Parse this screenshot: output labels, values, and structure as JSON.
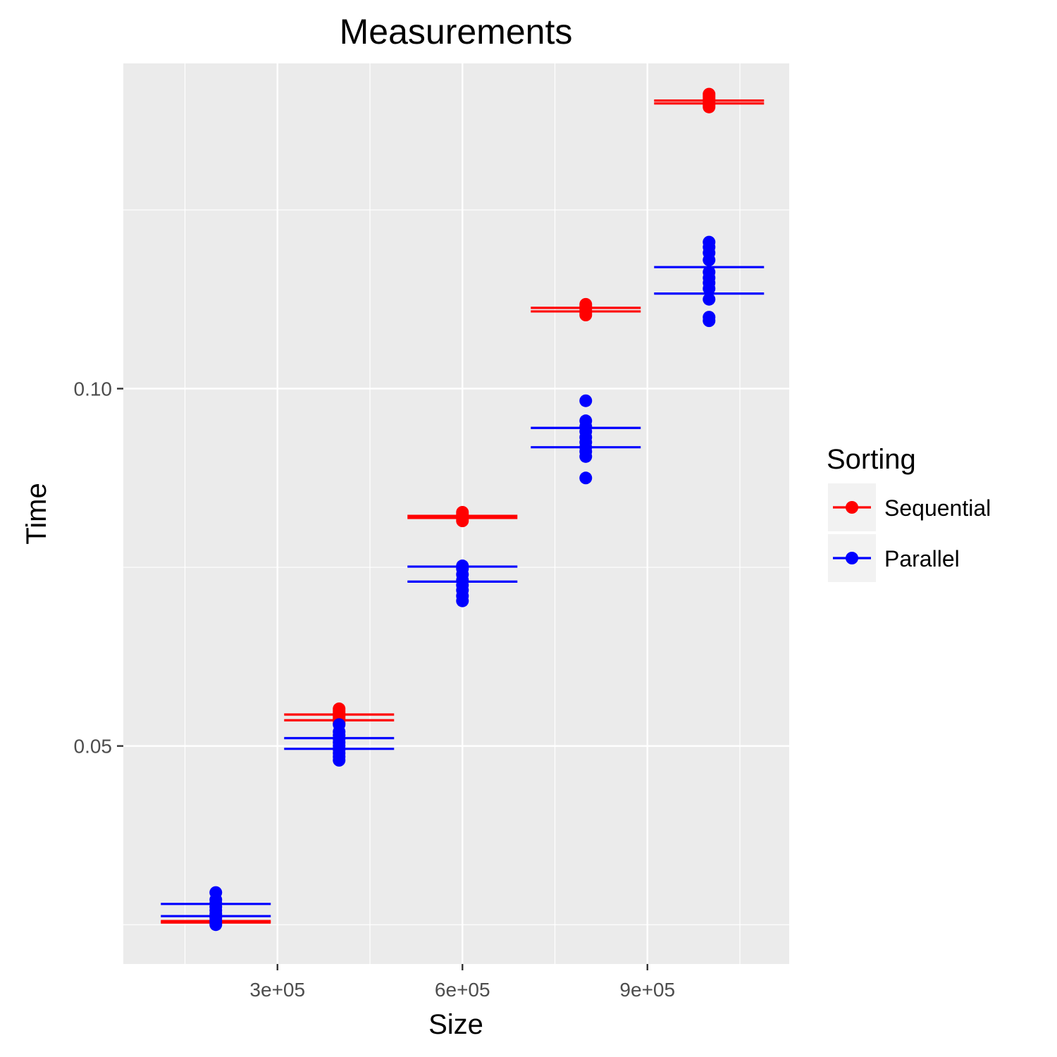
{
  "chart_data": {
    "type": "scatter",
    "title": "Measurements",
    "xlabel": "Size",
    "ylabel": "Time",
    "xlim": [
      50000,
      1130000
    ],
    "ylim": [
      0.0195,
      0.1455
    ],
    "x_ticks": [
      {
        "value": 300000,
        "label": "3e+05"
      },
      {
        "value": 600000,
        "label": "6e+05"
      },
      {
        "value": 900000,
        "label": "9e+05"
      }
    ],
    "y_ticks": [
      {
        "value": 0.05,
        "label": "0.05"
      },
      {
        "value": 0.1,
        "label": "0.10"
      }
    ],
    "grid": true,
    "legend": {
      "title": "Sorting",
      "position": "right"
    },
    "series": [
      {
        "name": "Sequential",
        "color": "#ff0000",
        "points": [
          {
            "x": 200000,
            "y": [
              0.0252,
              0.0253,
              0.0254,
              0.0254,
              0.0255,
              0.0256
            ]
          },
          {
            "x": 400000,
            "y": [
              0.0532,
              0.0535,
              0.0538,
              0.0541,
              0.0544,
              0.0546,
              0.0549,
              0.0552
            ]
          },
          {
            "x": 600000,
            "y": [
              0.0815,
              0.0818,
              0.082,
              0.0822,
              0.0824,
              0.0827
            ]
          },
          {
            "x": 800000,
            "y": [
              0.1103,
              0.1106,
              0.1109,
              0.1112,
              0.1115,
              0.1118
            ]
          },
          {
            "x": 1000000,
            "y": [
              0.1394,
              0.1397,
              0.14,
              0.1403,
              0.1406,
              0.1409,
              0.1412
            ]
          }
        ],
        "bounds": [
          {
            "x": 200000,
            "low": 0.0253,
            "high": 0.0255
          },
          {
            "x": 400000,
            "low": 0.0536,
            "high": 0.0544
          },
          {
            "x": 600000,
            "low": 0.0819,
            "high": 0.0822
          },
          {
            "x": 800000,
            "low": 0.1108,
            "high": 0.1113
          },
          {
            "x": 1000000,
            "low": 0.1399,
            "high": 0.1403
          }
        ]
      },
      {
        "name": "Parallel",
        "color": "#0000ff",
        "points": [
          {
            "x": 200000,
            "y": [
              0.025,
              0.0255,
              0.026,
              0.0265,
              0.027,
              0.0275,
              0.028,
              0.0285,
              0.0295
            ]
          },
          {
            "x": 400000,
            "y": [
              0.048,
              0.0485,
              0.049,
              0.0495,
              0.05,
              0.0505,
              0.051,
              0.0515,
              0.052,
              0.053
            ]
          },
          {
            "x": 600000,
            "y": [
              0.0703,
              0.071,
              0.0718,
              0.0725,
              0.0732,
              0.074,
              0.0748,
              0.0752
            ]
          },
          {
            "x": 800000,
            "y": [
              0.0875,
              0.0905,
              0.0912,
              0.0918,
              0.0925,
              0.0932,
              0.094,
              0.0947,
              0.0955,
              0.0983
            ]
          },
          {
            "x": 1000000,
            "y": [
              0.1095,
              0.11,
              0.1125,
              0.114,
              0.1148,
              0.1155,
              0.1163,
              0.118,
              0.119,
              0.1198,
              0.1205
            ]
          }
        ],
        "bounds": [
          {
            "x": 200000,
            "low": 0.0262,
            "high": 0.0279
          },
          {
            "x": 400000,
            "low": 0.0496,
            "high": 0.0511
          },
          {
            "x": 600000,
            "low": 0.073,
            "high": 0.0751
          },
          {
            "x": 800000,
            "low": 0.0918,
            "high": 0.0945
          },
          {
            "x": 1000000,
            "low": 0.1133,
            "high": 0.117
          }
        ]
      }
    ]
  }
}
